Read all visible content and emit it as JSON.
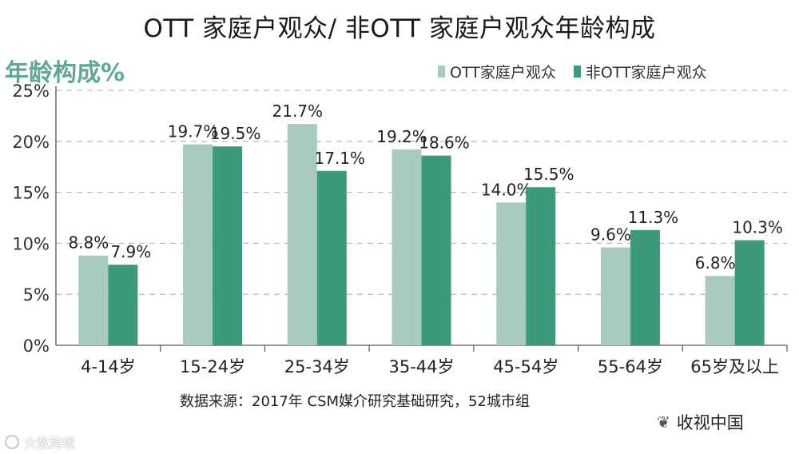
{
  "title": "OTT 家庭户观众/ 非OTT 家庭户观众年龄构成",
  "colors": {
    "ott": "#a8cbbd",
    "non_ott": "#3b9b78",
    "grid": "#bdbdbd",
    "axis": "#555555"
  },
  "source": "数据来源：2017年 CSM媒介研究基础研究，52城市组",
  "watermarks": {
    "left": "大数跨境",
    "right": "收视中国"
  },
  "chart_data": {
    "type": "bar",
    "title": "OTT 家庭户观众/ 非OTT 家庭户观众年龄构成",
    "ylabel": "年龄构成%",
    "xlabel": "",
    "categories": [
      "4-14岁",
      "15-24岁",
      "25-34岁",
      "35-44岁",
      "45-54岁",
      "55-64岁",
      "65岁及以上"
    ],
    "series": [
      {
        "name": "OTT家庭户观众",
        "values": [
          8.8,
          19.7,
          21.7,
          19.2,
          14.0,
          9.6,
          6.8
        ],
        "labels": [
          "8.8%",
          "19.7%",
          "21.7%",
          "19.2%",
          "14.0%",
          "9.6%",
          "6.8%"
        ]
      },
      {
        "name": "非OTT家庭户观众",
        "values": [
          7.9,
          19.5,
          17.1,
          18.6,
          15.5,
          11.3,
          10.3
        ],
        "labels": [
          "7.9%",
          "19.5%",
          "17.1%",
          "18.6%",
          "15.5%",
          "11.3%",
          "10.3%"
        ]
      }
    ],
    "ylim": [
      0,
      25
    ],
    "yticks": [
      0,
      5,
      10,
      15,
      20,
      25
    ],
    "ytick_labels": [
      "0%",
      "5%",
      "10%",
      "15%",
      "20%",
      "25%"
    ],
    "grid": true,
    "legend_position": "top-right"
  }
}
